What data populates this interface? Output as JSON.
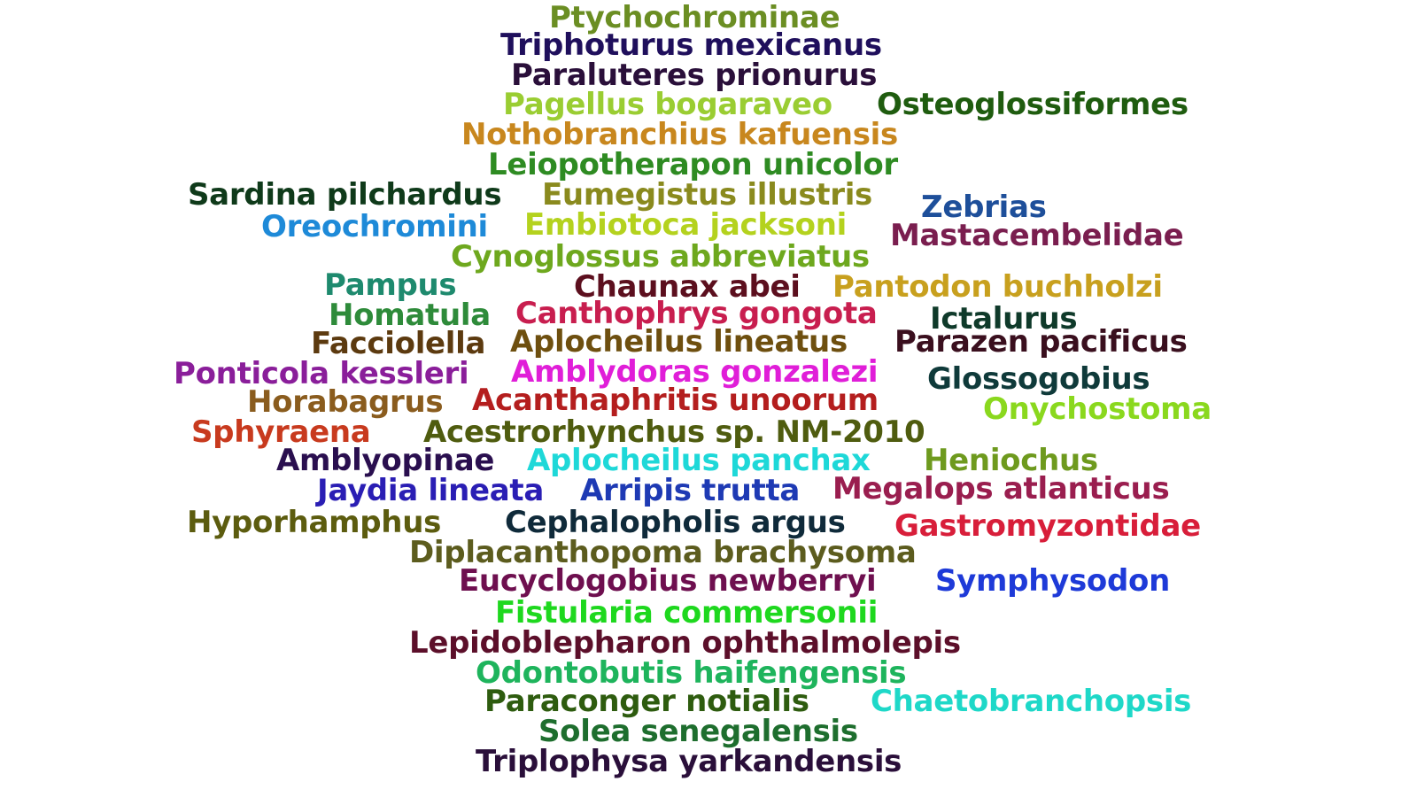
{
  "words": [
    {
      "text": "Ptychochrominae",
      "color": "#6b8e23"
    },
    {
      "text": "Triphoturus mexicanus",
      "color": "#1f0f5c"
    },
    {
      "text": "Paraluteres prionurus",
      "color": "#2a0f3a"
    },
    {
      "text": "Pagellus bogaraveo",
      "color": "#9acd32"
    },
    {
      "text": "Osteoglossiformes",
      "color": "#1f5c0f"
    },
    {
      "text": "Nothobranchius kafuensis",
      "color": "#c8871e"
    },
    {
      "text": "Leiopotherapon unicolor",
      "color": "#2e8b22"
    },
    {
      "text": "Sardina pilchardus",
      "color": "#0f3a1a"
    },
    {
      "text": "Eumegistus illustris",
      "color": "#8a8a1e"
    },
    {
      "text": "Zebrias",
      "color": "#1e4f9a"
    },
    {
      "text": "Oreochromini",
      "color": "#1e8ad8"
    },
    {
      "text": "Embiotoca jacksoni",
      "color": "#b4d21e"
    },
    {
      "text": "Mastacembelidae",
      "color": "#7a1e4f"
    },
    {
      "text": "Cynoglossus abbreviatus",
      "color": "#6ea81e"
    },
    {
      "text": "Pampus",
      "color": "#1e8a6e"
    },
    {
      "text": "Chaunax abei",
      "color": "#5c0f1e"
    },
    {
      "text": "Pantodon buchholzi",
      "color": "#c8a01e"
    },
    {
      "text": "Homatula",
      "color": "#2e8b3a"
    },
    {
      "text": "Canthophrys gongota",
      "color": "#c81e4f"
    },
    {
      "text": "Ictalurus",
      "color": "#0f3a2a"
    },
    {
      "text": "Facciolella",
      "color": "#5c3a0f"
    },
    {
      "text": "Aplocheilus lineatus",
      "color": "#6e4f0f"
    },
    {
      "text": "Parazen pacificus",
      "color": "#3a0f1e"
    },
    {
      "text": "Ponticola kessleri",
      "color": "#8a1e9a"
    },
    {
      "text": "Amblydoras gonzalezi",
      "color": "#e01ed8"
    },
    {
      "text": "Glossogobius",
      "color": "#0f3a3a"
    },
    {
      "text": "Horabagrus",
      "color": "#8a5c1e"
    },
    {
      "text": "Acanthaphritis unoorum",
      "color": "#b41e1e"
    },
    {
      "text": "Onychostoma",
      "color": "#8ad81e"
    },
    {
      "text": "Sphyraena",
      "color": "#c83a1e"
    },
    {
      "text": "Acestrorhynchus sp. NM-2010",
      "color": "#4f5c0f"
    },
    {
      "text": "Amblyopinae",
      "color": "#2a0f4f"
    },
    {
      "text": "Aplocheilus panchax",
      "color": "#1ed8d8"
    },
    {
      "text": "Heniochus",
      "color": "#6e9a1e"
    },
    {
      "text": "Jaydia lineata",
      "color": "#2a1eb4"
    },
    {
      "text": "Arripis trutta",
      "color": "#1e3ab4"
    },
    {
      "text": "Megalops atlanticus",
      "color": "#9a1e4f"
    },
    {
      "text": "Hyporhamphus",
      "color": "#5c5c0f"
    },
    {
      "text": "Cephalopholis argus",
      "color": "#0f2a3a"
    },
    {
      "text": "Gastromyzontidae",
      "color": "#d81e3a"
    },
    {
      "text": "Diplacanthopoma brachysoma",
      "color": "#5c5c1e"
    },
    {
      "text": "Eucyclogobius newberryi",
      "color": "#6e0f4f"
    },
    {
      "text": "Symphysodon",
      "color": "#1e3ad8"
    },
    {
      "text": "Fistularia commersonii",
      "color": "#1ed81e"
    },
    {
      "text": "Lepidoblepharon ophthalmolepis",
      "color": "#5c0f2a"
    },
    {
      "text": "Odontobutis haifengensis",
      "color": "#1eb45c"
    },
    {
      "text": "Paraconger notialis",
      "color": "#2e5c0f"
    },
    {
      "text": "Chaetobranchopsis",
      "color": "#1ed8c8"
    },
    {
      "text": "Solea senegalensis",
      "color": "#1e6e2e"
    },
    {
      "text": "Triplophysa yarkandensis",
      "color": "#2a0f3a"
    }
  ]
}
